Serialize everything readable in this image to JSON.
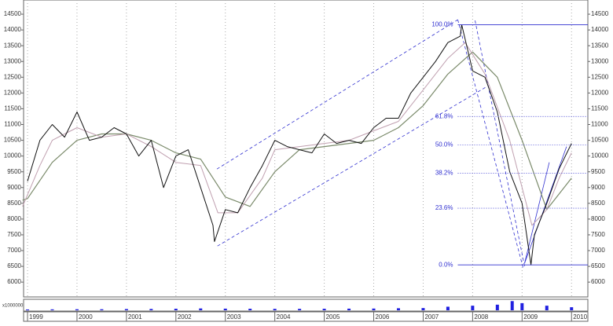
{
  "chart_data": [
    {
      "type": "line",
      "xlim": [
        1998.92,
        2010.33
      ],
      "ylim": [
        5530,
        14950
      ],
      "xticks": [
        1999,
        2000,
        2001,
        2002,
        2003,
        2004,
        2005,
        2006,
        2007,
        2008,
        2009,
        2010
      ],
      "yticks": [
        6000,
        6500,
        7000,
        7500,
        8000,
        8500,
        9000,
        9500,
        10000,
        10500,
        11000,
        11500,
        12000,
        12500,
        13000,
        13500,
        14000,
        14500
      ],
      "grid": true,
      "series": [
        {
          "color": "#7a8a6a",
          "width": 1.2,
          "x": [
            1998.9,
            1999.0,
            1999.5,
            2000.0,
            2000.5,
            2001.0,
            2001.5,
            2002.0,
            2002.5,
            2003.0,
            2003.5,
            2004.0,
            2004.5,
            2005.0,
            2005.5,
            2006.0,
            2006.5,
            2007.0,
            2007.5,
            2008.0,
            2008.5,
            2009.0,
            2009.5,
            2010.0
          ],
          "values": [
            8600,
            8650,
            9800,
            10500,
            10700,
            10700,
            10500,
            10100,
            9900,
            8700,
            8400,
            9500,
            10200,
            10300,
            10400,
            10500,
            10900,
            11600,
            12600,
            13300,
            12500,
            10500,
            8300,
            9300
          ]
        },
        {
          "color": "#c0a0b0",
          "width": 1,
          "x": [
            1998.9,
            1999.25,
            1999.5,
            1999.75,
            2000.0,
            2000.5,
            2001.0,
            2001.5,
            2002.0,
            2002.5,
            2002.85,
            2003.25,
            2003.75,
            2004.0,
            2004.5,
            2005.0,
            2005.5,
            2006.0,
            2006.5,
            2007.0,
            2007.5,
            2007.85,
            2008.25,
            2008.75,
            2009.2,
            2009.5,
            2009.75,
            2010.0
          ],
          "values": [
            8400,
            9700,
            10500,
            10700,
            10900,
            10600,
            10700,
            10300,
            9800,
            9700,
            8200,
            8200,
            9300,
            10200,
            10300,
            10400,
            10500,
            10800,
            11100,
            12100,
            13100,
            13600,
            12600,
            10500,
            7800,
            8300,
            9300,
            10100
          ]
        },
        {
          "color": "#111111",
          "width": 1,
          "x": [
            1999.0,
            1999.25,
            1999.5,
            1999.75,
            2000.0,
            2000.25,
            2000.5,
            2000.75,
            2001.0,
            2001.25,
            2001.5,
            2001.75,
            2002.0,
            2002.25,
            2002.5,
            2002.75,
            2002.78,
            2003.0,
            2003.25,
            2003.5,
            2003.75,
            2004.0,
            2004.25,
            2004.5,
            2004.75,
            2005.0,
            2005.25,
            2005.5,
            2005.75,
            2006.0,
            2006.25,
            2006.5,
            2006.75,
            2007.0,
            2007.25,
            2007.5,
            2007.75,
            2007.78,
            2008.0,
            2008.25,
            2008.5,
            2008.75,
            2009.0,
            2009.18,
            2009.25,
            2009.5,
            2009.75,
            2010.0
          ],
          "values": [
            9200,
            10500,
            11000,
            10600,
            11400,
            10500,
            10600,
            10900,
            10700,
            10000,
            10500,
            9000,
            10000,
            10200,
            9000,
            7800,
            7286,
            8300,
            8200,
            9000,
            9700,
            10500,
            10300,
            10200,
            10100,
            10700,
            10400,
            10500,
            10400,
            10900,
            11200,
            11200,
            12000,
            12500,
            13000,
            13600,
            13800,
            14164,
            12700,
            12500,
            11400,
            9500,
            8500,
            6547,
            7500,
            8500,
            9600,
            10400
          ]
        }
      ],
      "lines": [
        {
          "color": "#3030d0",
          "dash": true,
          "x": [
            2002.83,
            2007.7
          ],
          "values": [
            9587,
            14325
          ]
        },
        {
          "color": "#3030d0",
          "dash": true,
          "x": [
            2002.84,
            2008.29
          ],
          "values": [
            7144,
            12206
          ]
        },
        {
          "color": "#3030d0",
          "dash": true,
          "x": [
            2007.7,
            2009.03
          ],
          "values": [
            14325,
            6400
          ]
        },
        {
          "color": "#3030d0",
          "dash": true,
          "x": [
            2008.05,
            2009.05
          ],
          "values": [
            14300,
            6500
          ]
        },
        {
          "color": "#3030d0",
          "dash": false,
          "x": [
            2009.05,
            2009.55
          ],
          "values": [
            6600,
            9800
          ]
        },
        {
          "color": "#3030d0",
          "dash": false,
          "x": [
            2009.05,
            2009.9
          ],
          "values": [
            6600,
            10300
          ]
        }
      ],
      "fib_x": 2007.7,
      "fib_levels": [
        {
          "value": 14164,
          "label": "100.0%"
        },
        {
          "value": 11254,
          "label": "61.8%"
        },
        {
          "value": 10356,
          "label": "50.0%"
        },
        {
          "value": 9457,
          "label": "38.2%"
        },
        {
          "value": 8345,
          "label": "23.6%"
        },
        {
          "value": 6547,
          "label": "0.0%"
        }
      ]
    },
    {
      "type": "volume",
      "label": "x1000000",
      "color": "#2020e0",
      "ylim": [
        0,
        100
      ],
      "x": [
        1999.0,
        1999.5,
        2000.0,
        2000.5,
        2001.0,
        2001.5,
        2002.0,
        2002.5,
        2003.0,
        2003.5,
        2004.0,
        2004.5,
        2005.0,
        2005.5,
        2006.0,
        2006.5,
        2007.0,
        2007.5,
        2008.0,
        2008.5,
        2008.8,
        2009.0,
        2009.5,
        2010.0
      ],
      "values": [
        8,
        9,
        10,
        10,
        12,
        13,
        15,
        18,
        16,
        15,
        14,
        14,
        15,
        16,
        17,
        20,
        22,
        35,
        45,
        55,
        90,
        70,
        45,
        30
      ]
    }
  ]
}
